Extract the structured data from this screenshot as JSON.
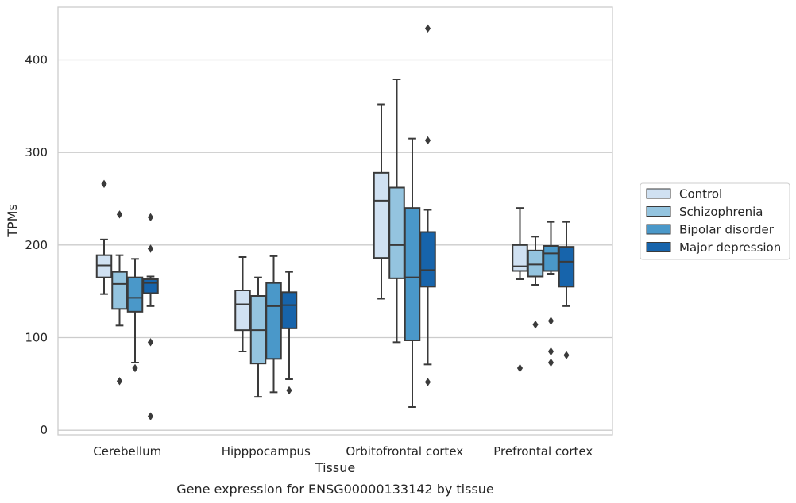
{
  "chart_data": {
    "type": "box",
    "xlabel": "Tissue",
    "ylabel": "TPMs",
    "caption": "Gene expression for ENSG00000133142 by tissue",
    "categories": [
      "Cerebellum",
      "Hipppocampus",
      "Orbitofrontal cortex",
      "Prefrontal cortex"
    ],
    "ylim": [
      -5,
      457
    ],
    "yticks": [
      0,
      100,
      200,
      300,
      400
    ],
    "grid": "horizontal",
    "legend_position": "right",
    "colors": [
      "#d0e1f2",
      "#94c4df",
      "#4a98c9",
      "#1764ab"
    ],
    "series": [
      {
        "name": "Control",
        "boxes": [
          {
            "whisker_low": 147,
            "q1": 165,
            "median": 178,
            "q3": 189,
            "whisker_high": 206,
            "outliers": [
              266
            ]
          },
          {
            "whisker_low": 85,
            "q1": 108,
            "median": 136,
            "q3": 151,
            "whisker_high": 187,
            "outliers": []
          },
          {
            "whisker_low": 142,
            "q1": 186,
            "median": 248,
            "q3": 278,
            "whisker_high": 352,
            "outliers": []
          },
          {
            "whisker_low": 163,
            "q1": 172,
            "median": 177,
            "q3": 200,
            "whisker_high": 240,
            "outliers": [
              67
            ]
          }
        ]
      },
      {
        "name": "Schizophrenia",
        "boxes": [
          {
            "whisker_low": 113,
            "q1": 131,
            "median": 158,
            "q3": 171,
            "whisker_high": 189,
            "outliers": [
              233,
              53
            ]
          },
          {
            "whisker_low": 36,
            "q1": 72,
            "median": 108,
            "q3": 145,
            "whisker_high": 165,
            "outliers": []
          },
          {
            "whisker_low": 95,
            "q1": 164,
            "median": 200,
            "q3": 262,
            "whisker_high": 379,
            "outliers": []
          },
          {
            "whisker_low": 157,
            "q1": 166,
            "median": 179,
            "q3": 194,
            "whisker_high": 209,
            "outliers": [
              114
            ]
          }
        ]
      },
      {
        "name": "Bipolar disorder",
        "boxes": [
          {
            "whisker_low": 73,
            "q1": 128,
            "median": 143,
            "q3": 165,
            "whisker_high": 185,
            "outliers": [
              67
            ]
          },
          {
            "whisker_low": 41,
            "q1": 77,
            "median": 134,
            "q3": 159,
            "whisker_high": 188,
            "outliers": []
          },
          {
            "whisker_low": 25,
            "q1": 97,
            "median": 165,
            "q3": 240,
            "whisker_high": 315,
            "outliers": []
          },
          {
            "whisker_low": 169,
            "q1": 172,
            "median": 191,
            "q3": 199,
            "whisker_high": 225,
            "outliers": [
              118,
              85,
              73
            ]
          }
        ]
      },
      {
        "name": "Major depression",
        "boxes": [
          {
            "whisker_low": 134,
            "q1": 148,
            "median": 159,
            "q3": 163,
            "whisker_high": 166,
            "outliers": [
              230,
              196,
              95,
              15
            ]
          },
          {
            "whisker_low": 55,
            "q1": 110,
            "median": 135,
            "q3": 149,
            "whisker_high": 171,
            "outliers": [
              43
            ]
          },
          {
            "whisker_low": 71,
            "q1": 155,
            "median": 173,
            "q3": 214,
            "whisker_high": 238,
            "outliers": [
              434,
              313,
              52
            ]
          },
          {
            "whisker_low": 134,
            "q1": 155,
            "median": 182,
            "q3": 198,
            "whisker_high": 225,
            "outliers": [
              81
            ]
          }
        ]
      }
    ]
  }
}
